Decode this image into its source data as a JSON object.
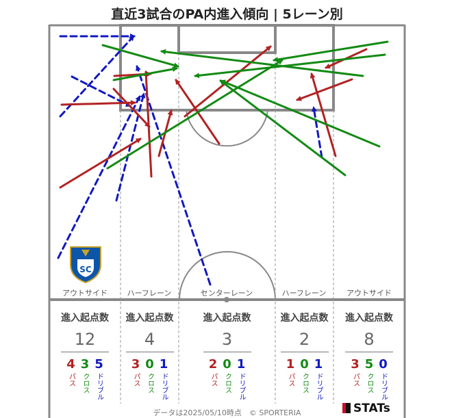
{
  "title": "直近3試合のPA内進入傾向 | 5レーン別",
  "colors": {
    "pass": "#b22222",
    "cross": "#138a13",
    "dribble": "#1018c0",
    "pitch_line": "#888888"
  },
  "labels": {
    "pass": "パス",
    "cross": "クロス",
    "dribble": "ドリブル"
  },
  "footer": {
    "note": "データは2025/05/10時点　© SPORTERIA",
    "brand": "STATs"
  },
  "logo": {
    "text": "SC",
    "icon": "club-crest-icon"
  },
  "chart_data": {
    "type": "flow-map",
    "lanes": [
      {
        "name": "アウトサイド",
        "header": "進入起点数",
        "total": 12,
        "pass": 4,
        "cross": 3,
        "dribble": 5
      },
      {
        "name": "ハーフレーン",
        "header": "進入起点数",
        "total": 4,
        "pass": 3,
        "cross": 0,
        "dribble": 1
      },
      {
        "name": "センターレーン",
        "header": "進入起点数",
        "total": 3,
        "pass": 2,
        "cross": 0,
        "dribble": 1
      },
      {
        "name": "ハーフレーン",
        "header": "進入起点数",
        "total": 2,
        "pass": 1,
        "cross": 0,
        "dribble": 1
      },
      {
        "name": "アウトサイド",
        "header": "進入起点数",
        "total": 8,
        "pass": 3,
        "cross": 5,
        "dribble": 0
      }
    ],
    "entries": [
      {
        "kind": "dribble",
        "from": [
          88,
          53
        ],
        "to": [
          196,
          53
        ]
      },
      {
        "kind": "dribble",
        "from": [
          105,
          112
        ],
        "to": [
          190,
          155
        ]
      },
      {
        "kind": "dribble",
        "from": [
          88,
          170
        ],
        "to": [
          195,
          53
        ]
      },
      {
        "kind": "dribble",
        "from": [
          170,
          293
        ],
        "to": [
          210,
          137
        ]
      },
      {
        "kind": "dribble",
        "from": [
          85,
          377
        ],
        "to": [
          204,
          141
        ]
      },
      {
        "kind": "dribble",
        "from": [
          307,
          416
        ],
        "to": [
          200,
          97
        ]
      },
      {
        "kind": "dribble",
        "from": [
          470,
          230
        ],
        "to": [
          458,
          157
        ]
      },
      {
        "kind": "pass",
        "from": [
          90,
          153
        ],
        "to": [
          197,
          150
        ]
      },
      {
        "kind": "pass",
        "from": [
          167,
          111
        ],
        "to": [
          220,
          108
        ]
      },
      {
        "kind": "pass",
        "from": [
          166,
          130
        ],
        "to": [
          218,
          185
        ]
      },
      {
        "kind": "pass",
        "from": [
          88,
          274
        ],
        "to": [
          205,
          203
        ]
      },
      {
        "kind": "pass",
        "from": [
          221,
          258
        ],
        "to": [
          213,
          105
        ]
      },
      {
        "kind": "pass",
        "from": [
          232,
          228
        ],
        "to": [
          250,
          162
        ]
      },
      {
        "kind": "pass",
        "from": [
          320,
          210
        ],
        "to": [
          257,
          117
        ]
      },
      {
        "kind": "pass",
        "from": [
          270,
          170
        ],
        "to": [
          395,
          68
        ]
      },
      {
        "kind": "pass",
        "from": [
          535,
          72
        ],
        "to": [
          476,
          99
        ]
      },
      {
        "kind": "pass",
        "from": [
          514,
          116
        ],
        "to": [
          434,
          146
        ]
      },
      {
        "kind": "pass",
        "from": [
          490,
          228
        ],
        "to": [
          455,
          108
        ]
      },
      {
        "kind": "cross",
        "from": [
          150,
          66
        ],
        "to": [
          260,
          97
        ]
      },
      {
        "kind": "cross",
        "from": [
          166,
          117
        ],
        "to": [
          258,
          100
        ]
      },
      {
        "kind": "cross",
        "from": [
          157,
          246
        ],
        "to": [
          412,
          88
        ]
      },
      {
        "kind": "cross",
        "from": [
          566,
          61
        ],
        "to": [
          400,
          88
        ]
      },
      {
        "kind": "cross",
        "from": [
          562,
          80
        ],
        "to": [
          285,
          111
        ]
      },
      {
        "kind": "cross",
        "from": [
          530,
          111
        ],
        "to": [
          236,
          75
        ]
      },
      {
        "kind": "cross",
        "from": [
          554,
          214
        ],
        "to": [
          323,
          118
        ]
      },
      {
        "kind": "cross",
        "from": [
          504,
          256
        ],
        "to": [
          322,
          118
        ]
      }
    ]
  }
}
